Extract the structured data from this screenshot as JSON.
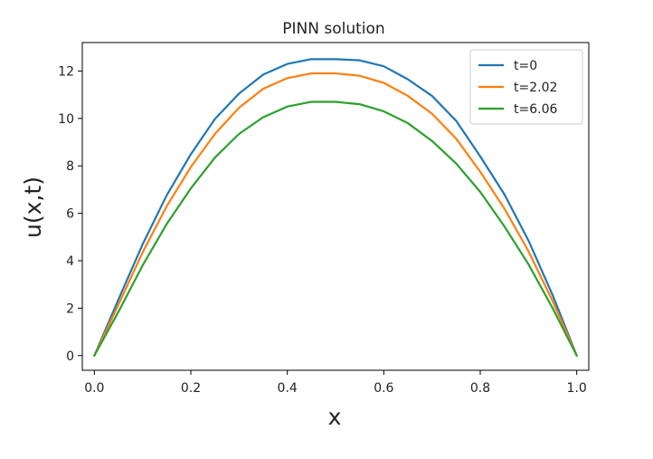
{
  "chart_data": {
    "type": "line",
    "title": "PINN solution",
    "xlabel": "x",
    "ylabel": "u(x,t)",
    "xlim": [
      -0.025,
      1.025
    ],
    "ylim": [
      -0.62,
      13.2
    ],
    "xticks": [
      0.0,
      0.2,
      0.4,
      0.6,
      0.8,
      1.0
    ],
    "xtick_labels": [
      "0.0",
      "0.2",
      "0.4",
      "0.6",
      "0.8",
      "1.0"
    ],
    "yticks": [
      0,
      2,
      4,
      6,
      8,
      10,
      12
    ],
    "ytick_labels": [
      "0",
      "2",
      "4",
      "6",
      "8",
      "10",
      "12"
    ],
    "grid": false,
    "legend_position": "top-right",
    "series": [
      {
        "name": "t=0",
        "color": "#1f77b4",
        "x": [
          0.0,
          0.05,
          0.1,
          0.15,
          0.2,
          0.25,
          0.3,
          0.35,
          0.4,
          0.45,
          0.5,
          0.55,
          0.6,
          0.65,
          0.7,
          0.75,
          0.8,
          0.85,
          0.9,
          0.95,
          1.0
        ],
        "y": [
          0.0,
          2.37,
          4.69,
          6.76,
          8.49,
          9.98,
          11.05,
          11.85,
          12.3,
          12.5,
          12.5,
          12.45,
          12.2,
          11.65,
          10.95,
          9.9,
          8.4,
          6.8,
          4.85,
          2.55,
          0.0
        ]
      },
      {
        "name": "t=2.02",
        "color": "#ff7f0e",
        "x": [
          0.0,
          0.05,
          0.1,
          0.15,
          0.2,
          0.25,
          0.3,
          0.35,
          0.4,
          0.45,
          0.5,
          0.55,
          0.6,
          0.65,
          0.7,
          0.75,
          0.8,
          0.85,
          0.9,
          0.95,
          1.0
        ],
        "y": [
          0.0,
          2.15,
          4.35,
          6.3,
          7.95,
          9.35,
          10.45,
          11.25,
          11.7,
          11.9,
          11.9,
          11.8,
          11.5,
          10.95,
          10.2,
          9.15,
          7.75,
          6.2,
          4.4,
          2.3,
          0.0
        ]
      },
      {
        "name": "t=6.06",
        "color": "#2ca02c",
        "x": [
          0.0,
          0.05,
          0.1,
          0.15,
          0.2,
          0.25,
          0.3,
          0.35,
          0.4,
          0.45,
          0.5,
          0.55,
          0.6,
          0.65,
          0.7,
          0.75,
          0.8,
          0.85,
          0.9,
          0.95,
          1.0
        ],
        "y": [
          0.0,
          1.85,
          3.8,
          5.55,
          7.05,
          8.35,
          9.35,
          10.05,
          10.5,
          10.7,
          10.7,
          10.6,
          10.3,
          9.8,
          9.05,
          8.1,
          6.9,
          5.45,
          3.85,
          2.0,
          0.0
        ]
      }
    ]
  }
}
